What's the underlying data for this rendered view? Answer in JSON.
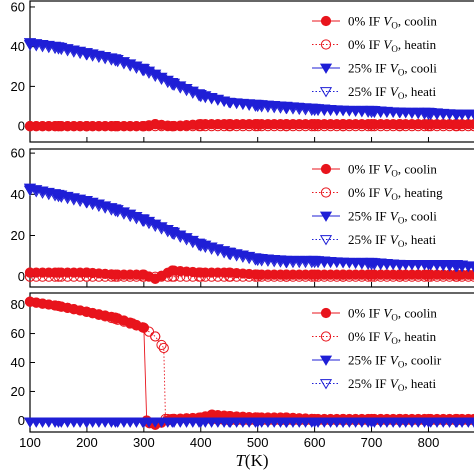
{
  "chart_data": [
    {
      "type": "scatter",
      "title": "",
      "ylabel": "",
      "xlim": [
        100,
        880
      ],
      "ylim": [
        -8,
        63
      ],
      "yticks": [
        0,
        20,
        40,
        60
      ],
      "legend_position": "right",
      "series": [
        {
          "name": "0% IF VO, cooling",
          "label_prefix": "0% IF ",
          "label_var": "V",
          "label_sub": "O",
          "label_suffix": ", coolin",
          "marker": "circle-filled",
          "color": "#e8141c",
          "line": "solid",
          "x": [
            100,
            150,
            200,
            250,
            300,
            320,
            350,
            400,
            450,
            500,
            550,
            600,
            650,
            700,
            750,
            800,
            850,
            880
          ],
          "y": [
            0,
            0,
            0,
            0,
            0,
            1,
            0,
            1,
            1,
            1,
            1,
            1,
            1,
            1,
            1,
            1,
            1,
            1
          ]
        },
        {
          "name": "0% IF VO, heating",
          "label_prefix": "0% IF ",
          "label_var": "V",
          "label_sub": "O",
          "label_suffix": ", heatin",
          "marker": "circle-open",
          "color": "#e8141c",
          "line": "dotted",
          "x": [
            100,
            150,
            200,
            250,
            300,
            350,
            400,
            450,
            500,
            550,
            600,
            650,
            700,
            750,
            800,
            850,
            880
          ],
          "y": [
            0,
            0,
            0,
            0,
            0,
            0,
            0,
            0,
            0,
            0,
            0,
            0,
            0,
            0,
            0,
            0,
            0
          ]
        },
        {
          "name": "25% IF VO, cooling",
          "label_prefix": "25% IF ",
          "label_var": "V",
          "label_sub": "O",
          "label_suffix": ", cooli",
          "marker": "triangle-down-filled",
          "color": "#1f1fd6",
          "line": "solid",
          "x": [
            100,
            150,
            200,
            250,
            300,
            350,
            400,
            450,
            500,
            550,
            600,
            650,
            700,
            750,
            800,
            850,
            880
          ],
          "y": [
            42,
            40,
            37,
            34,
            29,
            22,
            16,
            12,
            11,
            10,
            9,
            8,
            8,
            7,
            7,
            6,
            6
          ]
        },
        {
          "name": "25% IF VO, heating",
          "label_prefix": "25% IF ",
          "label_var": "V",
          "label_sub": "O",
          "label_suffix": ", heati",
          "marker": "triangle-down-open",
          "color": "#1f1fd6",
          "line": "dotted",
          "x": [
            100,
            150,
            200,
            250,
            300,
            350,
            400,
            450,
            500,
            550,
            600,
            650,
            700,
            750,
            800,
            850,
            880
          ],
          "y": [
            41,
            39,
            36,
            33,
            28,
            21,
            15,
            12,
            10,
            9,
            8,
            8,
            7,
            7,
            6,
            6,
            6
          ]
        }
      ]
    },
    {
      "type": "scatter",
      "title": "",
      "ylabel": "",
      "xlim": [
        100,
        880
      ],
      "ylim": [
        -5,
        62
      ],
      "yticks": [
        0,
        20,
        40,
        60
      ],
      "legend_position": "right",
      "series": [
        {
          "name": "0% IF VO, cooling",
          "label_prefix": "0% IF ",
          "label_var": "V",
          "label_sub": "O",
          "label_suffix": ", coolin",
          "marker": "circle-filled",
          "color": "#e8141c",
          "line": "solid",
          "x": [
            100,
            150,
            200,
            250,
            300,
            320,
            350,
            400,
            450,
            500,
            550,
            600,
            650,
            700,
            750,
            800,
            850,
            880
          ],
          "y": [
            2,
            2,
            2,
            1,
            1,
            -1,
            3,
            2,
            2,
            1,
            1,
            1,
            1,
            1,
            1,
            1,
            1,
            1
          ]
        },
        {
          "name": "0% IF VO, heating",
          "label_prefix": "0% IF ",
          "label_var": "V",
          "label_sub": "O",
          "label_suffix": ", heating",
          "marker": "circle-open",
          "color": "#e8141c",
          "line": "dotted",
          "x": [
            100,
            150,
            200,
            250,
            300,
            350,
            400,
            450,
            500,
            550,
            600,
            650,
            700,
            750,
            800,
            850,
            880
          ],
          "y": [
            0,
            0,
            0,
            0,
            0,
            0,
            0,
            0,
            0,
            0,
            0,
            0,
            0,
            0,
            0,
            0,
            0
          ]
        },
        {
          "name": "25% IF VO, cooling",
          "label_prefix": "25% IF ",
          "label_var": "V",
          "label_sub": "O",
          "label_suffix": ", cooli",
          "marker": "triangle-down-filled",
          "color": "#1f1fd6",
          "line": "solid",
          "x": [
            100,
            150,
            200,
            250,
            300,
            350,
            400,
            450,
            500,
            550,
            600,
            650,
            700,
            750,
            800,
            850,
            880
          ],
          "y": [
            43,
            40,
            37,
            33,
            28,
            22,
            16,
            12,
            9,
            8,
            8,
            7,
            7,
            6,
            6,
            6,
            5
          ]
        },
        {
          "name": "25% IF VO, heating",
          "label_prefix": "25% IF ",
          "label_var": "V",
          "label_sub": "O",
          "label_suffix": ", heati",
          "marker": "triangle-down-open",
          "color": "#1f1fd6",
          "line": "dotted",
          "x": [
            100,
            150,
            200,
            250,
            300,
            350,
            400,
            450,
            500,
            550,
            600,
            650,
            700,
            750,
            800,
            850,
            880
          ],
          "y": [
            42,
            39,
            36,
            32,
            27,
            21,
            15,
            11,
            8,
            7,
            7,
            7,
            6,
            6,
            6,
            5,
            5
          ]
        }
      ]
    },
    {
      "type": "scatter",
      "title": "",
      "ylabel": "",
      "xlabel_var": "T",
      "xlabel_unit": "(K)",
      "xlim": [
        100,
        880
      ],
      "ylim": [
        -8,
        88
      ],
      "yticks": [
        0,
        20,
        40,
        60,
        80
      ],
      "xticks": [
        100,
        200,
        300,
        400,
        500,
        600,
        700,
        800
      ],
      "legend_position": "right",
      "series": [
        {
          "name": "0% IF VO, cooling",
          "label_prefix": "0% IF ",
          "label_var": "V",
          "label_sub": "O",
          "label_suffix": ", coolin",
          "marker": "circle-filled",
          "color": "#e8141c",
          "line": "solid",
          "x": [
            100,
            150,
            200,
            250,
            280,
            300,
            305,
            310,
            320,
            350,
            400,
            420,
            450,
            500,
            550,
            600,
            650,
            700,
            750,
            800,
            850,
            880
          ],
          "y": [
            82,
            79,
            75,
            71,
            67,
            64,
            0,
            -2,
            -3,
            1,
            2,
            4,
            3,
            2,
            2,
            1,
            1,
            1,
            1,
            1,
            1,
            1
          ]
        },
        {
          "name": "0% IF VO, heating",
          "label_prefix": "0% IF ",
          "label_var": "V",
          "label_sub": "O",
          "label_suffix": ", heatin",
          "marker": "circle-open",
          "color": "#e8141c",
          "line": "dotted",
          "x": [
            100,
            150,
            200,
            250,
            300,
            320,
            335,
            338,
            350,
            400,
            450,
            500,
            550,
            600,
            650,
            700,
            750,
            800,
            850,
            880
          ],
          "y": [
            82,
            79,
            75,
            70,
            64,
            58,
            50,
            1,
            1,
            1,
            0,
            0,
            0,
            0,
            0,
            0,
            0,
            0,
            0,
            0
          ]
        },
        {
          "name": "25% IF VO, cooling",
          "label_prefix": "25% IF ",
          "label_var": "V",
          "label_sub": "O",
          "label_suffix": ", coolir",
          "marker": "triangle-down-filled",
          "color": "#1f1fd6",
          "line": "solid",
          "x": [
            100,
            150,
            200,
            250,
            300,
            350,
            400,
            450,
            500,
            550,
            600,
            650,
            700,
            750,
            800,
            850,
            880
          ],
          "y": [
            -1,
            -1,
            -1,
            -1,
            -1,
            -1,
            -1,
            -1,
            -1,
            -1,
            -1,
            -1,
            -1,
            -1,
            -1,
            -1,
            -1
          ]
        },
        {
          "name": "25% IF VO, heating",
          "label_prefix": "25% IF ",
          "label_var": "V",
          "label_sub": "O",
          "label_suffix": ", heati",
          "marker": "triangle-down-open",
          "color": "#1f1fd6",
          "line": "dotted",
          "x": [
            100,
            150,
            200,
            250,
            300,
            350,
            400,
            450,
            500,
            550,
            600,
            650,
            700,
            750,
            800,
            850,
            880
          ],
          "y": [
            -1,
            -1,
            -1,
            -1,
            -1,
            -1,
            -1,
            -1,
            -1,
            -1,
            -1,
            -1,
            -1,
            -1,
            -1,
            -1,
            -1
          ]
        }
      ]
    }
  ]
}
